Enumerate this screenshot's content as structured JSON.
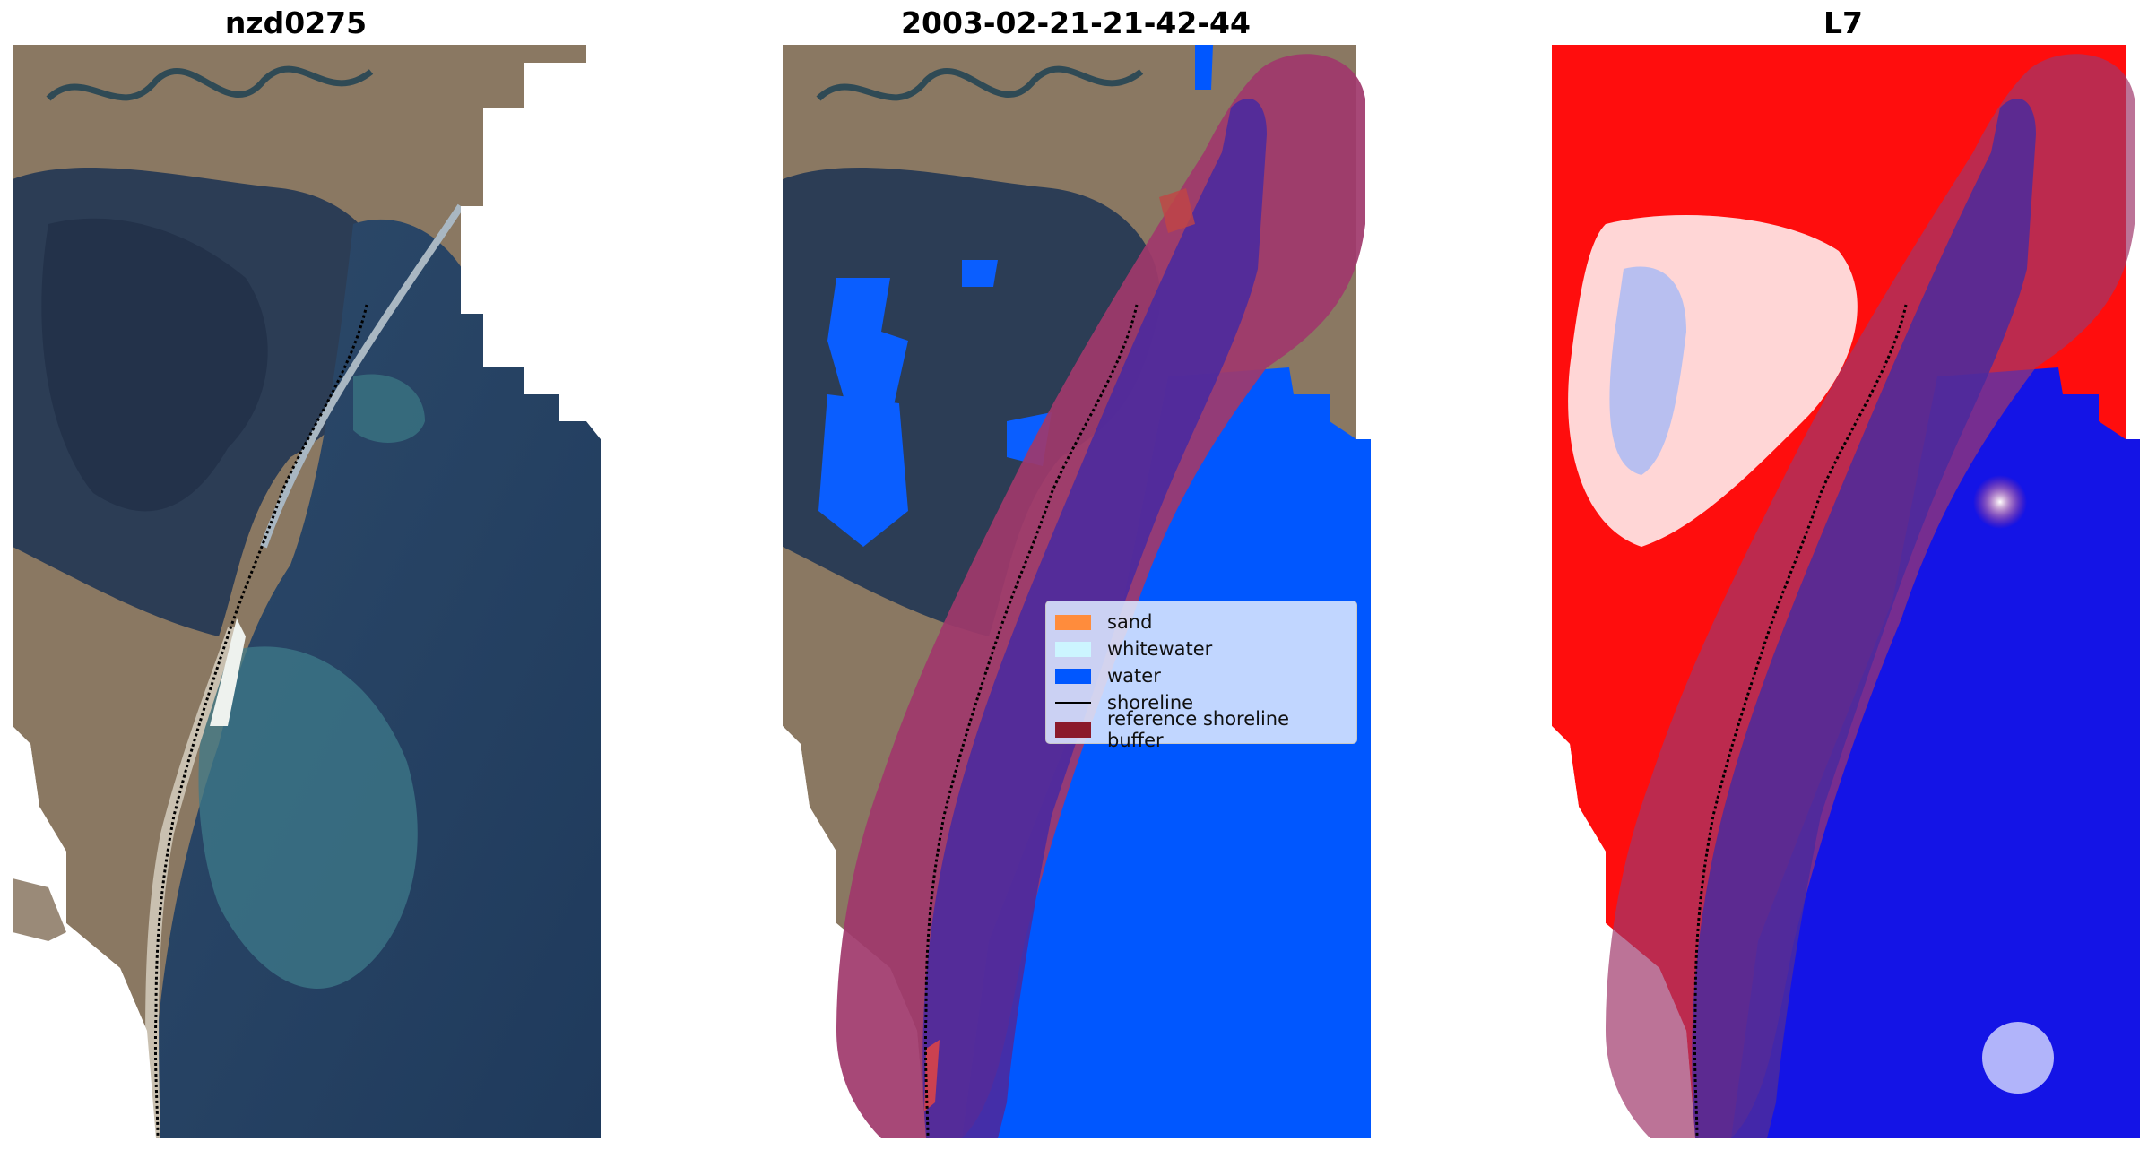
{
  "panels": [
    {
      "title": "nzd0275"
    },
    {
      "title": "2003-02-21-21-42-44"
    },
    {
      "title": "L7"
    }
  ],
  "legend": {
    "entries": [
      {
        "label": "sand",
        "color": "#ff8c3c"
      },
      {
        "label": "whitewater",
        "color": "#ccf5ff"
      },
      {
        "label": "water",
        "color": "#0057ff"
      },
      {
        "label": "shoreline",
        "color": "#000000"
      },
      {
        "label": "reference shoreline buffer",
        "color": "#8b1a2b"
      }
    ]
  },
  "colors": {
    "buffer": "#a0386b",
    "overlay_purple": "#4b2a9e",
    "water": "#0057ff",
    "index_red": "#ff0000",
    "index_blue": "#1010ee"
  }
}
